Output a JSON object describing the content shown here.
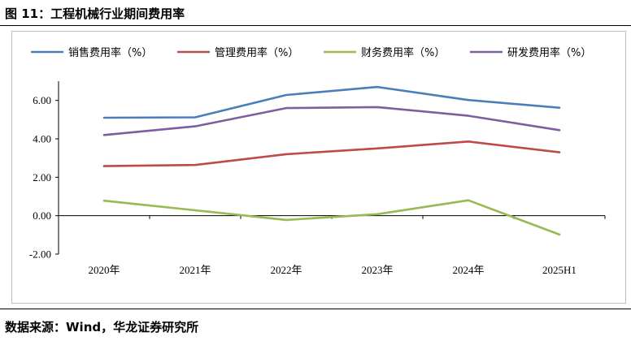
{
  "figure": {
    "title": "图 11：工程机械行业期间费用率",
    "source": "数据来源：Wind，华龙证券研究所"
  },
  "chart_data": {
    "type": "line",
    "title": "",
    "xlabel": "",
    "ylabel": "",
    "categories": [
      "2020年",
      "2021年",
      "2022年",
      "2023年",
      "2024年",
      "2025H1"
    ],
    "ylim": [
      -2.0,
      7.0
    ],
    "yticks": [
      -2.0,
      0.0,
      2.0,
      4.0,
      6.0
    ],
    "ytick_labels": [
      "-2.00",
      "0.00",
      "2.00",
      "4.00",
      "6.00"
    ],
    "grid": false,
    "legend_position": "top",
    "series": [
      {
        "name": "销售费用率（%）",
        "color": "#4a7ebb",
        "values": [
          5.1,
          5.12,
          6.28,
          6.7,
          6.02,
          5.62
        ]
      },
      {
        "name": "管理费用率（%）",
        "color": "#be4b48",
        "values": [
          2.58,
          2.64,
          3.2,
          3.5,
          3.86,
          3.3
        ]
      },
      {
        "name": "财务费用率（%）",
        "color": "#98b954",
        "values": [
          0.78,
          0.28,
          -0.22,
          0.08,
          0.8,
          -0.98
        ]
      },
      {
        "name": "研发费用率（%）",
        "color": "#7d5fa0",
        "values": [
          4.2,
          4.65,
          5.6,
          5.65,
          5.2,
          4.45
        ]
      }
    ]
  }
}
